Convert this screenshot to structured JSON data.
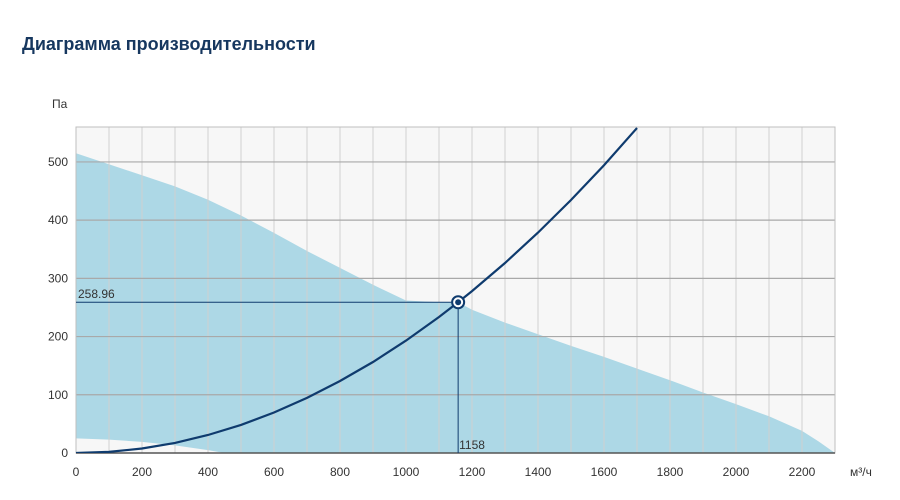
{
  "page": {
    "title": "Диаграмма производительности"
  },
  "chart_data": {
    "type": "area",
    "ylabel": "Па",
    "xlabel": "м³/ч",
    "xlim": [
      0,
      2300
    ],
    "ylim": [
      0,
      560
    ],
    "x_ticks": [
      0,
      200,
      400,
      600,
      800,
      1000,
      1200,
      1400,
      1600,
      1800,
      2000,
      2200
    ],
    "y_ticks": [
      0,
      100,
      200,
      300,
      400,
      500
    ],
    "grid": true,
    "series": [
      {
        "type": "area",
        "color": "#add8e6",
        "upper": {
          "x": [
            0,
            200,
            300,
            400,
            500,
            600,
            700,
            800,
            900,
            1000,
            1100,
            1158,
            1200,
            1300,
            1400,
            1500,
            1600,
            1700,
            1800,
            1900,
            2000,
            2100,
            2200,
            2250,
            2300
          ],
          "y": [
            515,
            477,
            458,
            435,
            408,
            378,
            347,
            318,
            289,
            262,
            258.96,
            258.96,
            246,
            224,
            204,
            184,
            165,
            145,
            125,
            104,
            84,
            63,
            38,
            20,
            0
          ]
        },
        "lower": {
          "x": [
            0,
            100,
            200,
            300,
            400,
            450,
            2300
          ],
          "y": [
            25,
            23,
            19,
            13,
            5,
            0,
            0
          ]
        }
      },
      {
        "type": "line",
        "color": "#0f3b6e",
        "x": [
          0,
          100,
          200,
          300,
          400,
          500,
          600,
          700,
          800,
          900,
          1000,
          1100,
          1158,
          1200,
          1300,
          1400,
          1500,
          1600,
          1700
        ],
        "y": [
          0,
          1.9,
          7.7,
          17.4,
          30.9,
          48.3,
          69.5,
          94.6,
          123.6,
          156.4,
          193.1,
          233.7,
          258.96,
          278.1,
          326.4,
          378.6,
          434.6,
          494.4,
          558.2
        ]
      }
    ],
    "operating_point": {
      "x": 1158,
      "y": 258.96,
      "x_label": "1158",
      "y_label": "258.96",
      "color": "#0f3b6e"
    }
  }
}
